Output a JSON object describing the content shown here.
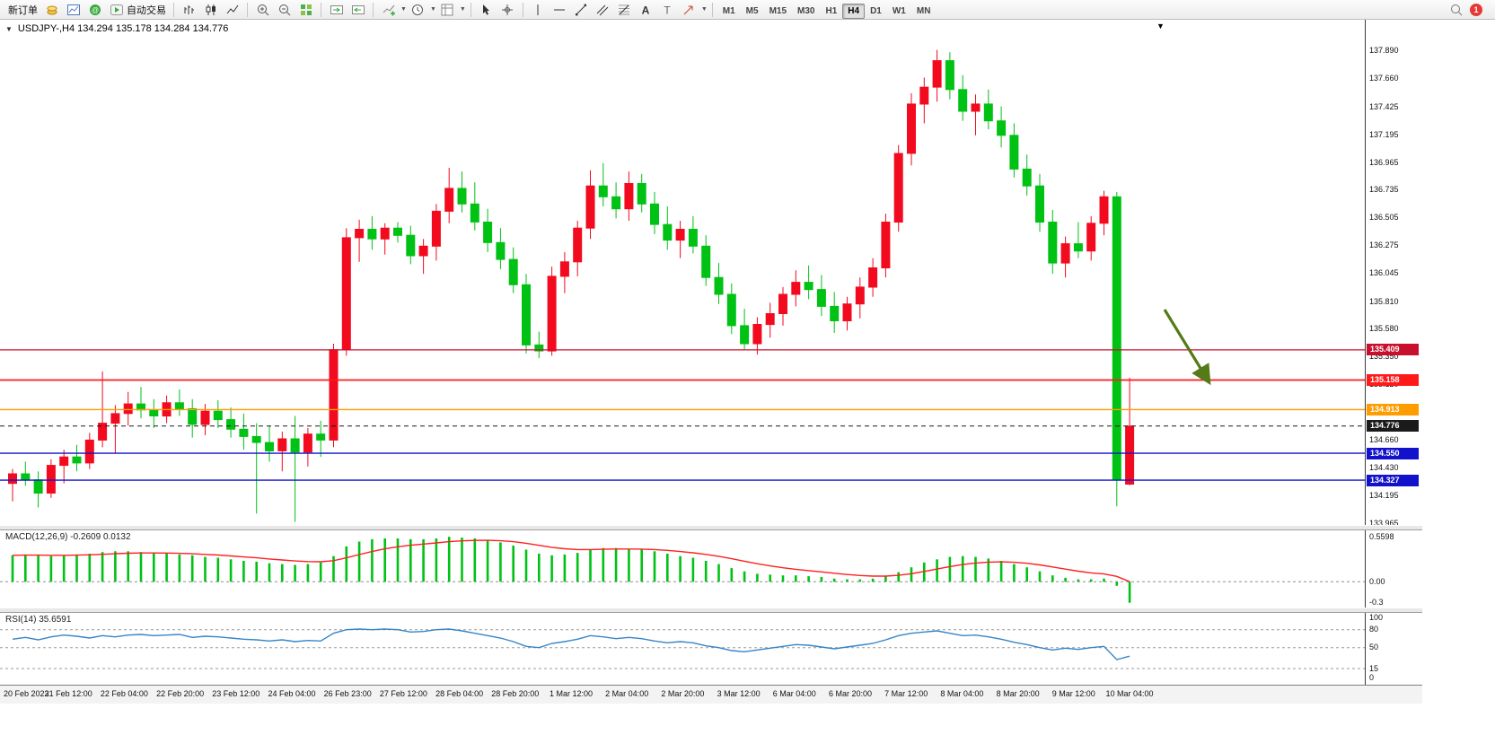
{
  "toolbar": {
    "new_order": {
      "label": "新订单"
    },
    "autotrading": {
      "label": "自动交易"
    },
    "icons": [
      "new-order-icon",
      "accounts-icon",
      "charts-icon",
      "community-icon",
      "autotrading-icon",
      "bar-chart-icon",
      "candlestick-icon",
      "line-chart-icon",
      "zoom-in-icon",
      "zoom-out-icon",
      "tile-windows-icon",
      "auto-scroll-icon",
      "chart-shift-icon",
      "indicators-icon",
      "timeframes-clock-icon",
      "template-icon",
      "cursor-icon",
      "crosshair-icon",
      "vertical-line-icon",
      "horizontal-line-icon",
      "trendline-icon",
      "channel-icon",
      "fibonacci-icon",
      "text-icon",
      "label-icon",
      "arrow-tools-icon",
      "search-icon"
    ],
    "timeframes": {
      "items": [
        "M1",
        "M5",
        "M15",
        "M30",
        "H1",
        "H4",
        "D1",
        "W1",
        "MN"
      ],
      "active": "H4"
    },
    "notification_badge": "1"
  },
  "chart": {
    "title": "USDJPY-,H4 134.294 135.178 134.284 134.776",
    "symbol": "USDJPY-",
    "period": "H4",
    "up_color": "#f20a1e",
    "down_color": "#00c214",
    "axis_labels": [
      "137.890",
      "137.660",
      "137.425",
      "137.195",
      "136.965",
      "136.735",
      "136.505",
      "136.275",
      "136.045",
      "135.810",
      "135.580",
      "135.350",
      "135.120",
      "134.890",
      "134.660",
      "134.430",
      "134.195",
      "133.965"
    ],
    "price_lines": [
      {
        "price": 135.409,
        "label": "135.409",
        "color": "#c8102e",
        "style": "solid",
        "width": 1.2
      },
      {
        "price": 135.158,
        "label": "135.158",
        "color": "#ff1a1a",
        "style": "solid",
        "width": 1.8
      },
      {
        "price": 134.913,
        "label": "134.913",
        "color": "#ff9c00",
        "style": "solid",
        "width": 1.4
      },
      {
        "price": 134.776,
        "label": "134.776",
        "color": "#1b1b1b",
        "style": "dashed",
        "width": 1
      },
      {
        "price": 134.55,
        "label": "134.550",
        "color": "#1212cc",
        "style": "solid",
        "width": 1.4
      },
      {
        "price": 134.327,
        "label": "134.327",
        "color": "#1212cc",
        "style": "solid",
        "width": 1.4
      }
    ],
    "x_labels": [
      "20 Feb 2023",
      "21 Feb 12:00",
      "22 Feb 04:00",
      "22 Feb 20:00",
      "23 Feb 12:00",
      "24 Feb 04:00",
      "26 Feb 23:00",
      "27 Feb 12:00",
      "28 Feb 04:00",
      "28 Feb 20:00",
      "1 Mar 12:00",
      "2 Mar 04:00",
      "2 Mar 20:00",
      "3 Mar 12:00",
      "6 Mar 04:00",
      "6 Mar 20:00",
      "7 Mar 12:00",
      "8 Mar 04:00",
      "8 Mar 20:00",
      "9 Mar 12:00",
      "10 Mar 04:00"
    ]
  },
  "chart_data": {
    "type": "candlestick",
    "symbol": "USDJPY-",
    "timeframe": "H4",
    "current_bar": {
      "open": "134.294",
      "high": "135.178",
      "low": "134.284",
      "close": "134.776"
    },
    "ylim": [
      133.955,
      138.15
    ],
    "candles_ohlc": [
      [
        134.3,
        134.42,
        134.15,
        134.38
      ],
      [
        134.38,
        134.48,
        134.28,
        134.33
      ],
      [
        134.33,
        134.4,
        134.1,
        134.22
      ],
      [
        134.22,
        134.5,
        134.18,
        134.45
      ],
      [
        134.45,
        134.58,
        134.3,
        134.52
      ],
      [
        134.52,
        134.62,
        134.4,
        134.47
      ],
      [
        134.47,
        134.72,
        134.42,
        134.66
      ],
      [
        134.66,
        135.23,
        134.6,
        134.8
      ],
      [
        134.8,
        134.95,
        134.55,
        134.88
      ],
      [
        134.88,
        135.06,
        134.78,
        134.96
      ],
      [
        134.96,
        135.1,
        134.84,
        134.91
      ],
      [
        134.91,
        135.0,
        134.76,
        134.86
      ],
      [
        134.86,
        135.03,
        134.8,
        134.97
      ],
      [
        134.97,
        135.08,
        134.86,
        134.92
      ],
      [
        134.92,
        135.0,
        134.68,
        134.79
      ],
      [
        134.79,
        134.96,
        134.7,
        134.9
      ],
      [
        134.9,
        134.99,
        134.76,
        134.83
      ],
      [
        134.83,
        134.93,
        134.68,
        134.75
      ],
      [
        134.75,
        134.88,
        134.58,
        134.69
      ],
      [
        134.69,
        134.8,
        134.05,
        134.64
      ],
      [
        134.64,
        134.78,
        134.48,
        134.57
      ],
      [
        134.57,
        134.73,
        134.4,
        134.67
      ],
      [
        134.67,
        134.86,
        133.98,
        134.56
      ],
      [
        134.56,
        134.76,
        134.44,
        134.71
      ],
      [
        134.71,
        134.82,
        134.52,
        134.66
      ],
      [
        134.66,
        135.46,
        134.6,
        135.41
      ],
      [
        135.41,
        136.42,
        135.36,
        136.34
      ],
      [
        136.34,
        136.49,
        136.14,
        136.41
      ],
      [
        136.41,
        136.52,
        136.24,
        136.33
      ],
      [
        136.33,
        136.46,
        136.2,
        136.42
      ],
      [
        136.42,
        136.47,
        136.3,
        136.36
      ],
      [
        136.36,
        136.44,
        136.12,
        136.19
      ],
      [
        136.19,
        136.33,
        136.04,
        136.27
      ],
      [
        136.27,
        136.62,
        136.15,
        136.56
      ],
      [
        136.56,
        136.92,
        136.46,
        136.75
      ],
      [
        136.75,
        136.89,
        136.55,
        136.62
      ],
      [
        136.62,
        136.8,
        136.4,
        136.47
      ],
      [
        136.47,
        136.58,
        136.22,
        136.3
      ],
      [
        136.3,
        136.42,
        136.08,
        136.16
      ],
      [
        136.16,
        136.26,
        135.88,
        135.95
      ],
      [
        135.95,
        136.04,
        135.38,
        135.45
      ],
      [
        135.45,
        135.56,
        135.34,
        135.4
      ],
      [
        135.4,
        136.1,
        135.36,
        136.02
      ],
      [
        136.02,
        136.22,
        135.88,
        136.14
      ],
      [
        136.14,
        136.48,
        136.02,
        136.42
      ],
      [
        136.42,
        136.9,
        136.33,
        136.77
      ],
      [
        136.77,
        136.96,
        136.6,
        136.68
      ],
      [
        136.68,
        136.8,
        136.5,
        136.58
      ],
      [
        136.58,
        136.89,
        136.48,
        136.79
      ],
      [
        136.79,
        136.87,
        136.55,
        136.62
      ],
      [
        136.62,
        136.72,
        136.37,
        136.45
      ],
      [
        136.45,
        136.6,
        136.24,
        136.32
      ],
      [
        136.32,
        136.48,
        136.17,
        136.41
      ],
      [
        136.41,
        136.52,
        136.21,
        136.27
      ],
      [
        136.27,
        136.36,
        135.94,
        136.01
      ],
      [
        136.01,
        136.13,
        135.79,
        135.87
      ],
      [
        135.87,
        135.96,
        135.54,
        135.61
      ],
      [
        135.61,
        135.75,
        135.41,
        135.46
      ],
      [
        135.46,
        135.68,
        135.37,
        135.62
      ],
      [
        135.62,
        135.8,
        135.51,
        135.71
      ],
      [
        135.71,
        135.93,
        135.61,
        135.87
      ],
      [
        135.87,
        136.07,
        135.77,
        135.97
      ],
      [
        135.97,
        136.11,
        135.83,
        135.91
      ],
      [
        135.91,
        136.03,
        135.69,
        135.77
      ],
      [
        135.77,
        135.89,
        135.55,
        135.65
      ],
      [
        135.65,
        135.85,
        135.57,
        135.79
      ],
      [
        135.79,
        136.01,
        135.67,
        135.93
      ],
      [
        135.93,
        136.17,
        135.85,
        136.09
      ],
      [
        136.09,
        136.54,
        136.01,
        136.47
      ],
      [
        136.47,
        137.11,
        136.39,
        137.04
      ],
      [
        137.04,
        137.54,
        136.94,
        137.45
      ],
      [
        137.45,
        137.67,
        137.29,
        137.59
      ],
      [
        137.59,
        137.9,
        137.47,
        137.81
      ],
      [
        137.81,
        137.88,
        137.49,
        137.57
      ],
      [
        137.57,
        137.69,
        137.31,
        137.39
      ],
      [
        137.39,
        137.53,
        137.19,
        137.45
      ],
      [
        137.45,
        137.57,
        137.24,
        137.31
      ],
      [
        137.31,
        137.43,
        137.09,
        137.19
      ],
      [
        137.19,
        137.29,
        136.84,
        136.91
      ],
      [
        136.91,
        137.03,
        136.69,
        136.77
      ],
      [
        136.77,
        136.87,
        136.39,
        136.47
      ],
      [
        136.47,
        136.57,
        136.04,
        136.13
      ],
      [
        136.13,
        136.35,
        136.01,
        136.29
      ],
      [
        136.29,
        136.47,
        136.17,
        136.23
      ],
      [
        136.23,
        136.52,
        136.15,
        136.46
      ],
      [
        136.46,
        136.73,
        136.36,
        136.68
      ],
      [
        136.68,
        136.72,
        134.11,
        134.33
      ],
      [
        134.294,
        135.178,
        134.284,
        134.776
      ]
    ],
    "macd": {
      "display": "MACD(12,26,9) -0.2609 0.0132",
      "name": "MACD(12,26,9)",
      "main_value": "-0.2609",
      "signal_value": "0.0132",
      "ylim": [
        -0.32,
        0.64
      ],
      "axis_labels": [
        "0.5598",
        "0.00",
        "-0.3"
      ],
      "histogram": [
        0.33,
        0.34,
        0.33,
        0.32,
        0.33,
        0.34,
        0.35,
        0.37,
        0.38,
        0.38,
        0.37,
        0.36,
        0.35,
        0.34,
        0.33,
        0.31,
        0.3,
        0.28,
        0.26,
        0.25,
        0.23,
        0.22,
        0.21,
        0.22,
        0.24,
        0.32,
        0.44,
        0.5,
        0.53,
        0.54,
        0.54,
        0.53,
        0.53,
        0.54,
        0.56,
        0.55,
        0.54,
        0.52,
        0.49,
        0.45,
        0.4,
        0.35,
        0.33,
        0.34,
        0.36,
        0.4,
        0.42,
        0.42,
        0.41,
        0.4,
        0.38,
        0.35,
        0.32,
        0.3,
        0.26,
        0.22,
        0.17,
        0.13,
        0.1,
        0.09,
        0.08,
        0.08,
        0.07,
        0.06,
        0.04,
        0.03,
        0.03,
        0.04,
        0.07,
        0.12,
        0.18,
        0.24,
        0.28,
        0.31,
        0.32,
        0.31,
        0.29,
        0.26,
        0.22,
        0.18,
        0.13,
        0.08,
        0.05,
        0.03,
        0.03,
        0.04,
        -0.05,
        -0.2609
      ]
    },
    "rsi": {
      "display": "RSI(14) 35.6591",
      "name": "RSI(14)",
      "value": "35.6591",
      "ylim": [
        -12,
        108
      ],
      "levels": [
        80,
        50,
        15
      ],
      "axis_labels": [
        "100",
        "80",
        "50",
        "15",
        "0"
      ],
      "values": [
        64,
        67,
        63,
        68,
        71,
        69,
        66,
        70,
        68,
        71,
        72,
        70,
        71,
        72,
        67,
        69,
        68,
        66,
        64,
        63,
        61,
        63,
        60,
        62,
        61,
        74,
        80,
        81,
        80,
        81,
        80,
        76,
        77,
        80,
        81,
        78,
        74,
        70,
        66,
        60,
        52,
        50,
        57,
        60,
        64,
        70,
        68,
        65,
        67,
        65,
        61,
        58,
        60,
        58,
        53,
        50,
        45,
        43,
        46,
        49,
        52,
        55,
        54,
        51,
        48,
        51,
        54,
        57,
        63,
        70,
        74,
        76,
        78,
        74,
        70,
        71,
        68,
        64,
        59,
        55,
        50,
        46,
        49,
        47,
        50,
        52,
        30,
        35.66
      ]
    }
  },
  "annotations": {
    "arrow": {
      "color": "#557a17",
      "direction": "down-right"
    }
  }
}
